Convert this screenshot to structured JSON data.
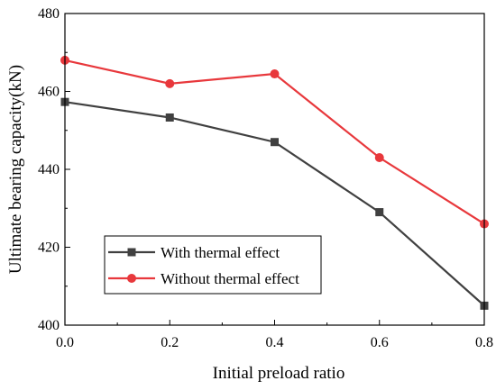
{
  "chart_data": {
    "type": "line",
    "xlabel": "Initial preload ratio",
    "ylabel": "Ultimate bearing capacity(kN)",
    "xlim": [
      0.0,
      0.8
    ],
    "ylim": [
      400,
      480
    ],
    "x_ticks": [
      "0.0",
      "0.2",
      "0.4",
      "0.6",
      "0.8"
    ],
    "y_ticks": [
      "400",
      "420",
      "440",
      "460",
      "480"
    ],
    "x": [
      0.0,
      0.2,
      0.4,
      0.6,
      0.8
    ],
    "grid": false,
    "legend_position": "bottom-left",
    "series": [
      {
        "name": "With thermal effect",
        "values": [
          457.3,
          453.3,
          447.0,
          429.0,
          405.0
        ],
        "color": "#404040",
        "marker": "square"
      },
      {
        "name": "Without thermal effect",
        "values": [
          468.0,
          462.0,
          464.5,
          443.0,
          426.0
        ],
        "color": "#e8383c",
        "marker": "circle"
      }
    ]
  }
}
